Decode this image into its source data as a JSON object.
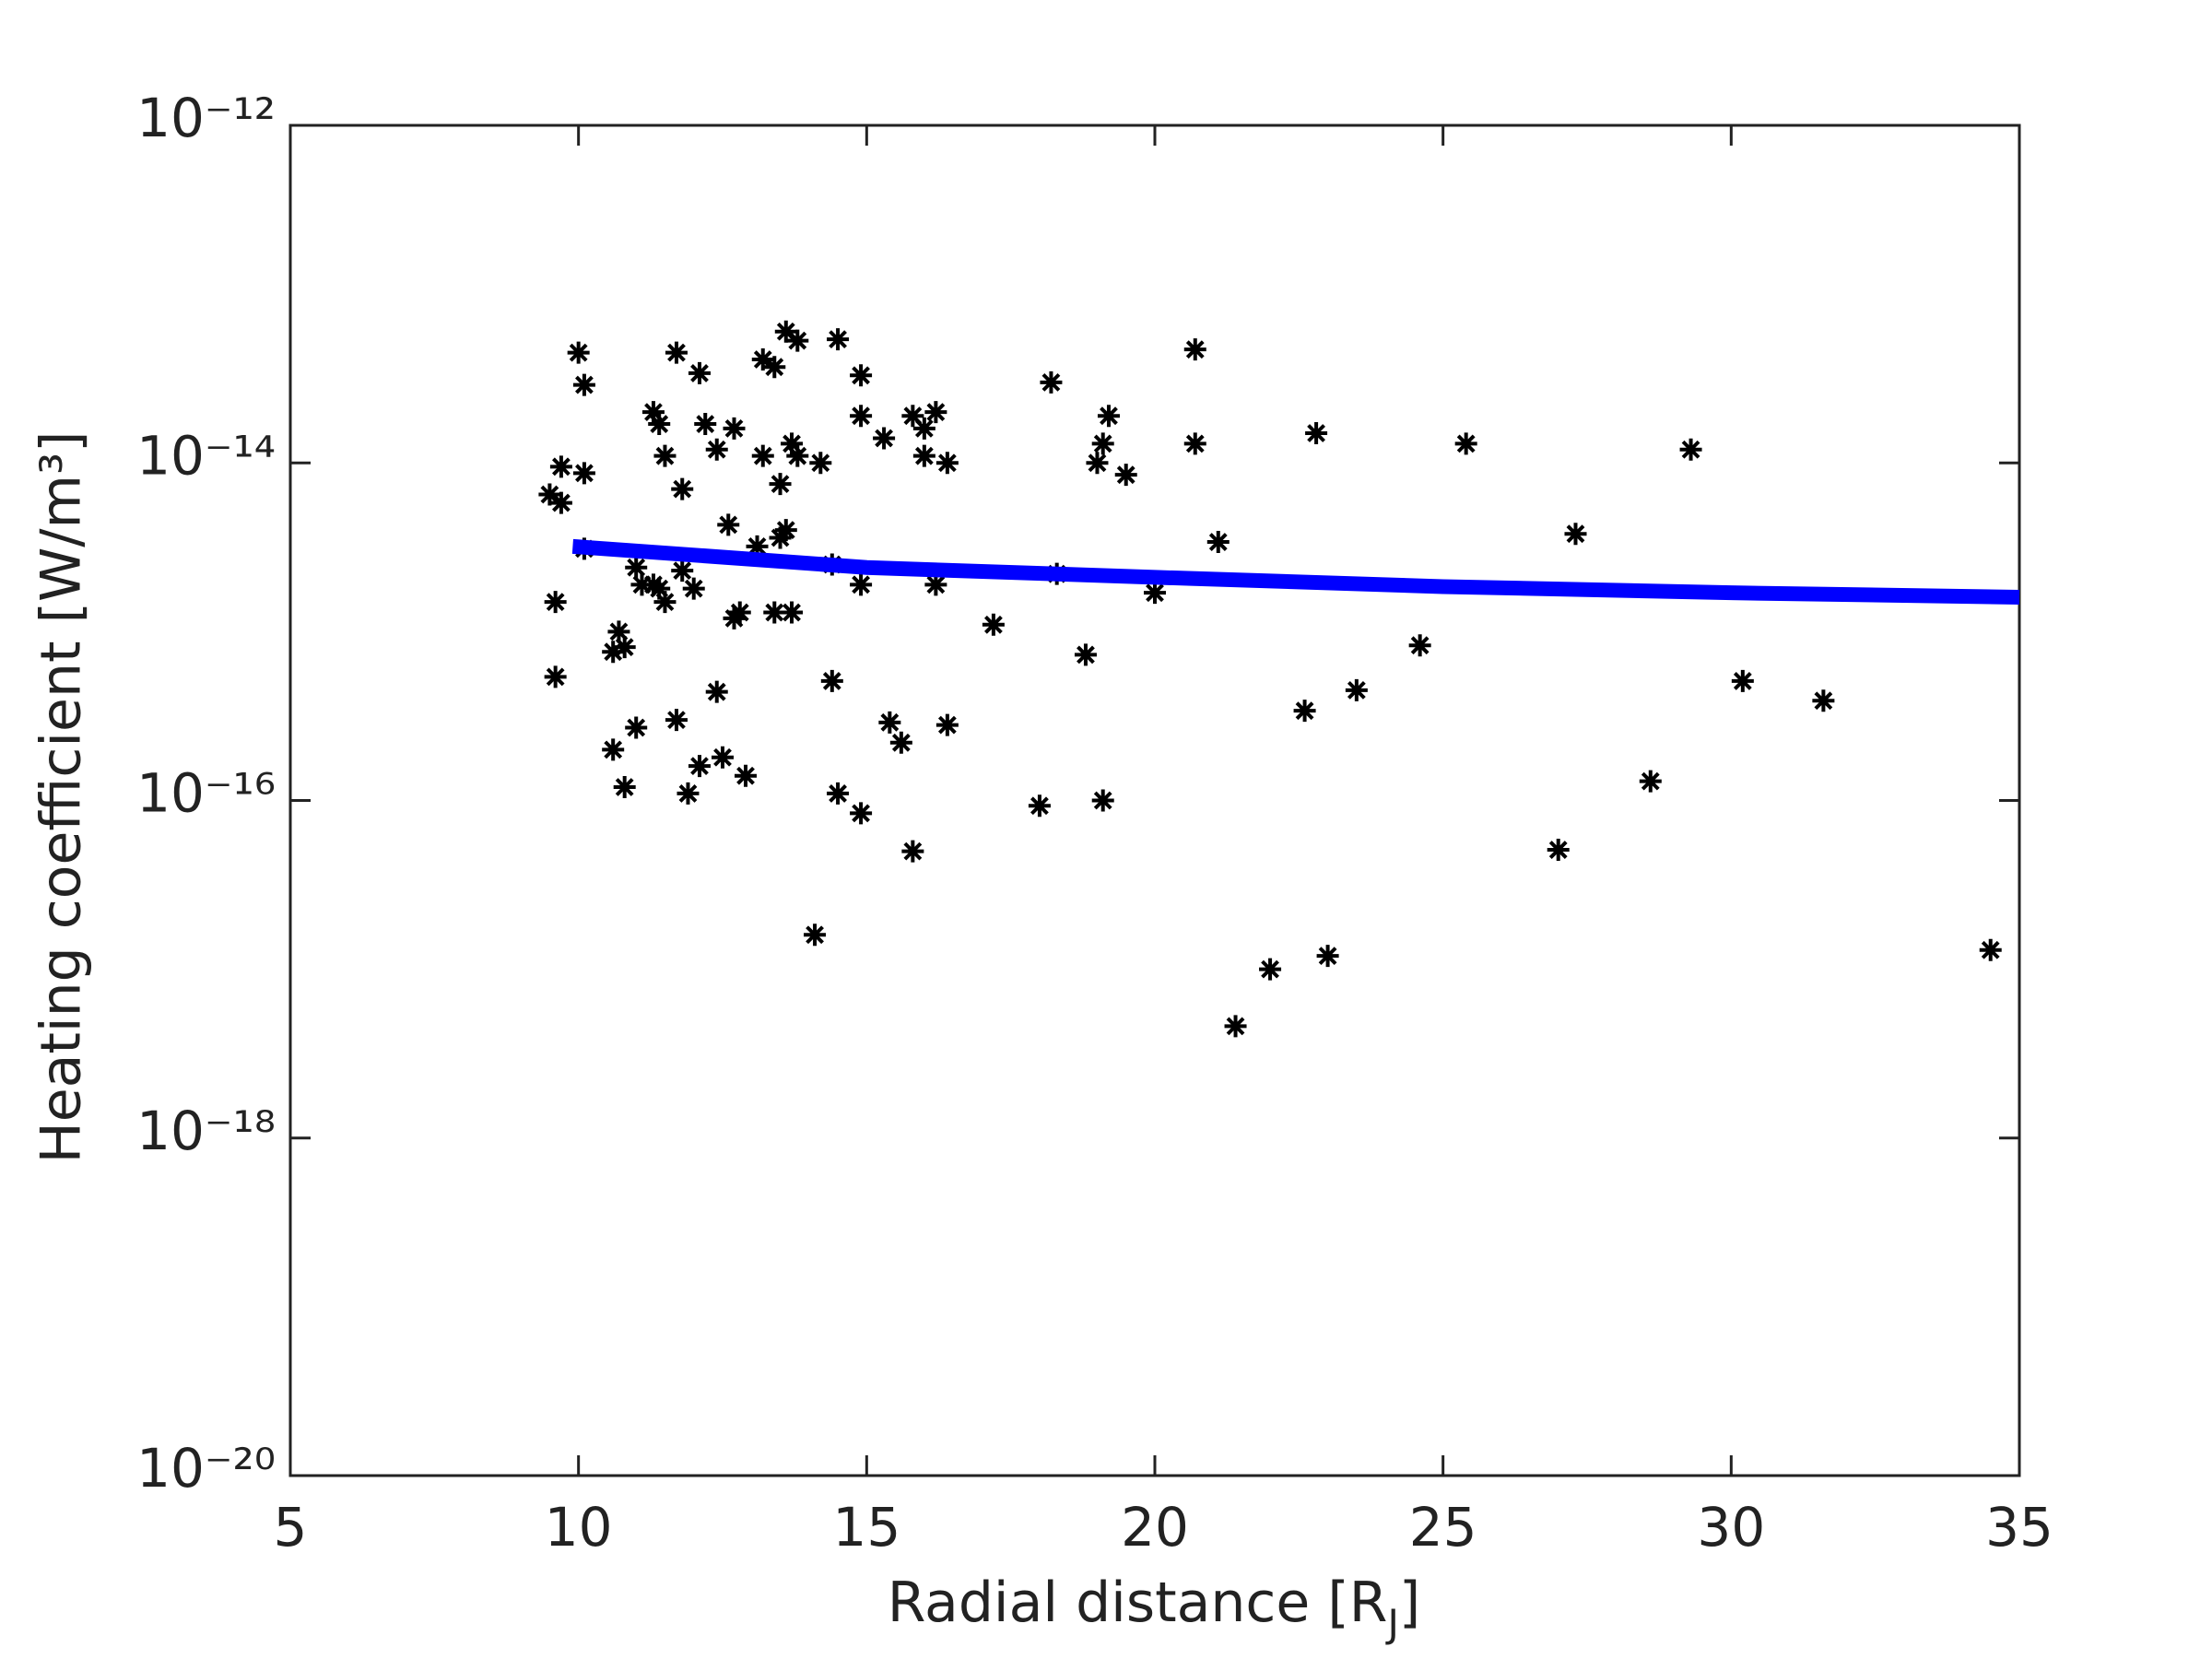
{
  "chart_data": {
    "type": "scatter",
    "x_label": {
      "main": "Radial distance [R",
      "sub": "J",
      "end": "]"
    },
    "y_label": "Heating coefficient [W/m³]",
    "xlim": [
      5,
      35
    ],
    "xticks": [
      5,
      10,
      15,
      20,
      25,
      30,
      35
    ],
    "ylim": [
      1e-20,
      1e-12
    ],
    "yscale": "log",
    "yticks": [
      {
        "value": 1e-20,
        "label": "10⁻²⁰"
      },
      {
        "value": 1e-18,
        "label": "10⁻¹⁸"
      },
      {
        "value": 1e-16,
        "label": "10⁻¹⁶"
      },
      {
        "value": 1e-14,
        "label": "10⁻¹⁴"
      },
      {
        "value": 1e-12,
        "label": "10⁻¹²"
      }
    ],
    "series": [
      {
        "type": "scatter",
        "color": "#000000",
        "x": [
          9.5,
          9.7,
          9.7,
          9.6,
          9.6,
          10.0,
          10.1,
          10.1,
          10.1,
          10.6,
          10.7,
          10.6,
          10.8,
          10.8,
          11.0,
          11.0,
          11.1,
          11.3,
          11.4,
          11.5,
          11.3,
          11.4,
          11.5,
          11.7,
          11.7,
          11.8,
          11.8,
          12.0,
          11.9,
          12.1,
          12.1,
          12.2,
          12.4,
          12.4,
          12.5,
          12.6,
          12.7,
          12.7,
          12.8,
          12.9,
          13.1,
          13.2,
          13.2,
          13.4,
          13.4,
          13.5,
          13.5,
          13.6,
          13.6,
          13.7,
          13.7,
          13.8,
          13.8,
          14.1,
          14.2,
          14.4,
          14.4,
          14.5,
          14.5,
          14.9,
          14.9,
          14.9,
          14.9,
          15.3,
          15.4,
          15.6,
          15.8,
          15.8,
          16.0,
          16.0,
          16.2,
          16.2,
          16.4,
          16.4,
          17.2,
          18.0,
          18.2,
          18.3,
          18.8,
          19.0,
          19.1,
          19.1,
          19.2,
          19.5,
          20.0,
          20.7,
          20.7,
          21.1,
          21.4,
          22.0,
          22.6,
          22.8,
          23.0,
          23.5,
          24.6,
          25.4,
          27.0,
          27.3,
          28.6,
          29.3,
          30.2,
          31.6,
          34.5
        ],
        "values": [
          6.5e-15,
          5.8e-15,
          9.5e-15,
          1.5e-15,
          5.4e-16,
          4.5e-14,
          2.9e-14,
          8.7e-15,
          3.1e-15,
          2e-16,
          1e-15,
          7.6e-16,
          8.1e-16,
          1.2e-16,
          2.4e-15,
          2.7e-16,
          1.9e-15,
          2e-14,
          1.7e-14,
          1.1e-14,
          1.9e-15,
          1.8e-15,
          1.5e-15,
          3e-16,
          4.5e-14,
          7e-15,
          2.3e-15,
          1.8e-15,
          1.1e-16,
          1.6e-16,
          3.4e-14,
          1.7e-14,
          1.2e-14,
          4.4e-16,
          1.8e-16,
          4.3e-15,
          1.6e-14,
          1.2e-15,
          1.3e-15,
          1.4e-16,
          3.2e-15,
          4.1e-14,
          1.1e-14,
          3.7e-14,
          1.3e-15,
          7.5e-15,
          3.6e-15,
          6e-14,
          4e-15,
          1.3e-14,
          1.3e-15,
          1.1e-14,
          5.3e-14,
          1.6e-17,
          1e-14,
          2.5e-15,
          5.1e-16,
          5.4e-14,
          1.1e-16,
          8.4e-17,
          3.3e-14,
          1.9e-14,
          1.9e-15,
          1.4e-14,
          2.9e-16,
          2.2e-16,
          1.9e-14,
          5e-17,
          1.6e-14,
          1.1e-14,
          2e-14,
          1.9e-15,
          2.8e-16,
          1e-14,
          1.1e-15,
          9.3e-17,
          3e-14,
          2.2e-15,
          7.3e-16,
          1e-14,
          1.3e-14,
          1e-16,
          1.9e-14,
          8.5e-15,
          1.7e-15,
          4.7e-14,
          1.3e-14,
          3.4e-15,
          4.6e-18,
          1e-17,
          3.4e-16,
          1.5e-14,
          1.2e-17,
          4.5e-16,
          8.3e-16,
          1.3e-14,
          5.1e-17,
          3.8e-15,
          1.3e-16,
          1.2e-14,
          5.1e-16,
          3.9e-16,
          1.3e-17
        ]
      },
      {
        "type": "line",
        "color": "#0000ff",
        "x": [
          9.9,
          15,
          20,
          25,
          30,
          35
        ],
        "values": [
          3.2e-15,
          2.4e-15,
          2.1e-15,
          1.85e-15,
          1.7e-15,
          1.6e-15
        ]
      }
    ]
  }
}
